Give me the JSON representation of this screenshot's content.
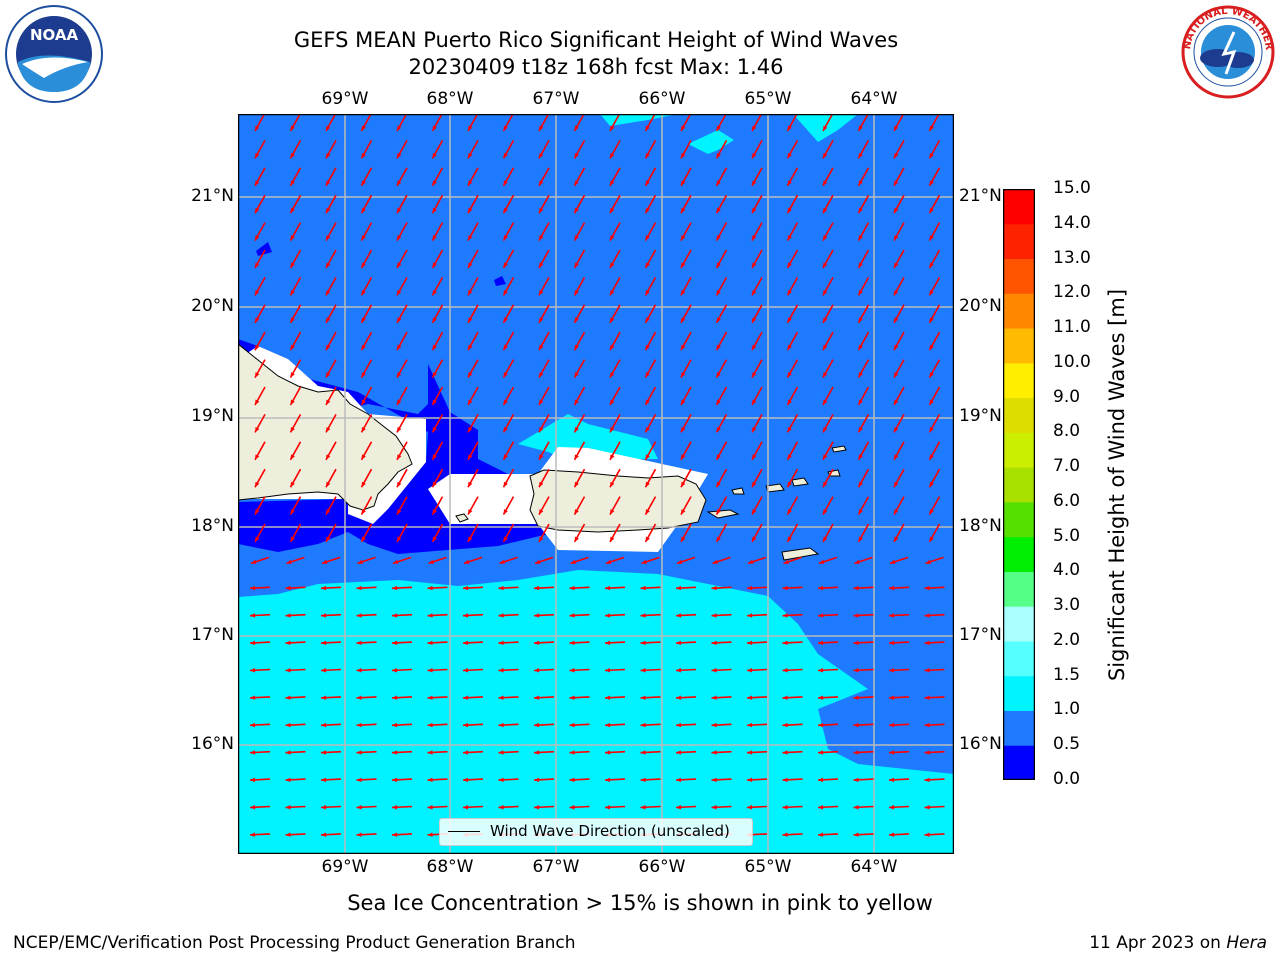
{
  "title_line1": "GEFS MEAN Puerto Rico Significant Height of Wind Waves",
  "title_line2": "20230409 t18z 168h fcst   Max: 1.46",
  "lon_labels": [
    "69°W",
    "68°W",
    "67°W",
    "66°W",
    "65°W",
    "64°W"
  ],
  "lat_labels": [
    "21°N",
    "20°N",
    "19°N",
    "18°N",
    "17°N",
    "16°N"
  ],
  "lat_labels_right": [
    "21°N",
    "20°N",
    "19°N",
    "18°N",
    "17°N",
    "16°N"
  ],
  "legend": {
    "label": "Wind Wave Direction (unscaled)"
  },
  "colorbar": {
    "label": "Significant Height of Wind Waves [m]",
    "ticks": [
      "15.0",
      "14.0",
      "13.0",
      "12.0",
      "11.0",
      "10.0",
      "9.0",
      "8.0",
      "7.0",
      "6.0",
      "5.0",
      "4.0",
      "3.0",
      "2.0",
      "1.5",
      "1.0",
      "0.5",
      "0.0"
    ],
    "colors": [
      "#0000ff",
      "#1e7bff",
      "#00f3ff",
      "#55ffff",
      "#aaffff",
      "#55ff88",
      "#00ee00",
      "#55e000",
      "#aae000",
      "#ccee00",
      "#dddd00",
      "#ffee00",
      "#ffbb00",
      "#ff8800",
      "#ff5500",
      "#ff2200",
      "#ff0000"
    ]
  },
  "map_colors": {
    "very_calm": "#0000ff",
    "calm": "#1e7bff",
    "moderate": "#00f3ff",
    "light": "#55ffff",
    "land": "#eeeedd",
    "arrows": "#ff0000"
  },
  "sea_ice_note": "Sea Ice Concentration > 15% is shown in pink to yellow",
  "footer_left": "NCEP/EMC/Verification Post Processing Product Generation Branch",
  "footer_date": "11 Apr 2023 on ",
  "footer_machine": "Hera",
  "logos": {
    "left": "NOAA",
    "right": "NATIONAL WEATHER SERVICE"
  }
}
